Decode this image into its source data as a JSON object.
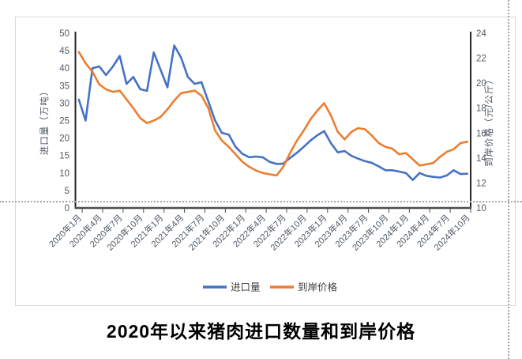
{
  "title": "2020年以来猪肉进口数量和到岸价格",
  "colors": {
    "imports_line": "#4472C4",
    "price_line": "#ED7D31",
    "axis_line": "#404040",
    "tick_text": "#4f5963",
    "chart_border": "#d9d9d9",
    "page_break_dots": "#a6a6a6"
  },
  "legend": {
    "imports_label": "进口量",
    "price_label": "到岸价格"
  },
  "chart_data": {
    "type": "line",
    "title": "2020年以来猪肉进口数量和到岸价格",
    "left_axis_title": "进口量（万吨）",
    "right_axis_title": "到岸价格（元/公斤）",
    "left_axis_range": [
      0,
      50
    ],
    "left_tick_labels": [
      "50",
      "45",
      "40",
      "35",
      "30",
      "25",
      "20",
      "15",
      "10",
      "5",
      "0"
    ],
    "right_axis_range": [
      10,
      24
    ],
    "right_tick_labels": [
      "24",
      "22",
      "20",
      "18",
      "16",
      "14",
      "12",
      "10"
    ],
    "legend_position": "bottom",
    "grid": false,
    "x_tick_labels": [
      "2020年1月",
      "2020年4月",
      "2020年7月",
      "2020年10月",
      "2021年1月",
      "2021年4月",
      "2021年7月",
      "2021年10月",
      "2022年1月",
      "2022年4月",
      "2022年7月",
      "2022年10月",
      "2023年1月",
      "2023年4月",
      "2023年7月",
      "2023年10月",
      "2024年1月",
      "2024年4月",
      "2024年7月",
      "2024年10月"
    ],
    "categories": [
      "2020年1月",
      "2020年2月",
      "2020年3月",
      "2020年4月",
      "2020年5月",
      "2020年6月",
      "2020年7月",
      "2020年8月",
      "2020年9月",
      "2020年10月",
      "2020年11月",
      "2020年12月",
      "2021年1月",
      "2021年2月",
      "2021年3月",
      "2021年4月",
      "2021年5月",
      "2021年6月",
      "2021年7月",
      "2021年8月",
      "2021年9月",
      "2021年10月",
      "2021年11月",
      "2021年12月",
      "2022年1月",
      "2022年2月",
      "2022年3月",
      "2022年4月",
      "2022年5月",
      "2022年6月",
      "2022年7月",
      "2022年8月",
      "2022年9月",
      "2022年10月",
      "2022年11月",
      "2022年12月",
      "2023年1月",
      "2023年2月",
      "2023年3月",
      "2023年4月",
      "2023年5月",
      "2023年6月",
      "2023年7月",
      "2023年8月",
      "2023年9月",
      "2023年10月",
      "2023年11月",
      "2023年12月",
      "2024年1月",
      "2024年2月",
      "2024年3月",
      "2024年4月",
      "2024年5月",
      "2024年6月",
      "2024年7月",
      "2024年8月",
      "2024年9月",
      "2024年10月"
    ],
    "series": [
      {
        "name": "进口量",
        "axis": "left",
        "unit": "万吨",
        "values": [
          31,
          25,
          40,
          40.5,
          38,
          40.5,
          43.5,
          35.5,
          37.5,
          34,
          33.5,
          44.5,
          39.5,
          34.5,
          46.5,
          43,
          37.5,
          35.5,
          36,
          30.5,
          25,
          21.5,
          21,
          17.5,
          15.5,
          14.5,
          14.7,
          14.5,
          13.2,
          12.6,
          12.7,
          14.3,
          15.8,
          17.5,
          19.3,
          20.8,
          22,
          18.5,
          15.9,
          16.3,
          14.9,
          14.1,
          13.4,
          12.9,
          11.9,
          10.8,
          10.8,
          10.4,
          10,
          8,
          10,
          9.2,
          8.9,
          8.7,
          9.3,
          10.8,
          9.7,
          9.8
        ]
      },
      {
        "name": "到岸价格",
        "axis": "right",
        "unit": "元/公斤",
        "values": [
          22.5,
          21.6,
          20.9,
          19.9,
          19.5,
          19.3,
          19.4,
          18.7,
          18,
          17.2,
          16.8,
          17,
          17.3,
          17.9,
          18.6,
          19.2,
          19.3,
          19.4,
          19,
          18,
          16.2,
          15.4,
          14.9,
          14.3,
          13.7,
          13.3,
          13,
          12.8,
          12.7,
          12.6,
          13.3,
          14.4,
          15.4,
          16.2,
          17.1,
          17.8,
          18.4,
          17.4,
          16.1,
          15.5,
          16.1,
          16.4,
          16.3,
          15.8,
          15.2,
          14.9,
          14.75,
          14.3,
          14.4,
          13.9,
          13.4,
          13.5,
          13.6,
          14.1,
          14.5,
          14.7,
          15.2,
          15.3
        ]
      }
    ]
  }
}
